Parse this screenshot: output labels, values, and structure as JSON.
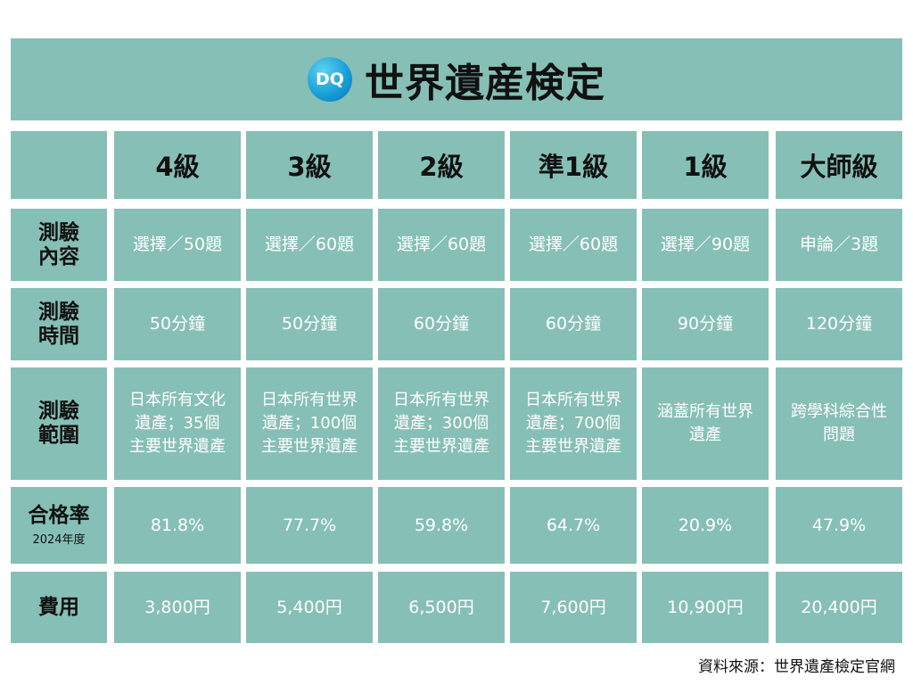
{
  "header": {
    "logo": "DQ",
    "title": "世界遺産検定"
  },
  "levels": [
    "4級",
    "3級",
    "2級",
    "準1級",
    "1級",
    "大師級"
  ],
  "rows": [
    {
      "label": [
        "測驗",
        "內容"
      ],
      "note": "",
      "values": [
        [
          "選擇／50題"
        ],
        [
          "選擇／60題"
        ],
        [
          "選擇／60題"
        ],
        [
          "選擇／60題"
        ],
        [
          "選擇／90題"
        ],
        [
          "申論／3題"
        ]
      ]
    },
    {
      "label": [
        "測驗",
        "時間"
      ],
      "note": "",
      "values": [
        [
          "50分鐘"
        ],
        [
          "50分鐘"
        ],
        [
          "60分鐘"
        ],
        [
          "60分鐘"
        ],
        [
          "90分鐘"
        ],
        [
          "120分鐘"
        ]
      ]
    },
    {
      "label": [
        "測驗",
        "範圍"
      ],
      "note": "",
      "values": [
        [
          "日本所有文化",
          "遺產；35個",
          "主要世界遺產"
        ],
        [
          "日本所有世界",
          "遺產；100個",
          "主要世界遺產"
        ],
        [
          "日本所有世界",
          "遺產；300個",
          "主要世界遺產"
        ],
        [
          "日本所有世界",
          "遺產；700個",
          "主要世界遺產"
        ],
        [
          "涵蓋所有世界",
          "遺產"
        ],
        [
          "跨學科綜合性",
          "問題"
        ]
      ]
    },
    {
      "label": [
        "合格率"
      ],
      "note": "2024年度",
      "values": [
        [
          "81.8%"
        ],
        [
          "77.7%"
        ],
        [
          "59.8%"
        ],
        [
          "64.7%"
        ],
        [
          "20.9%"
        ],
        [
          "47.9%"
        ]
      ]
    },
    {
      "label": [
        "費用"
      ],
      "note": "",
      "values": [
        [
          "3,800円"
        ],
        [
          "5,400円"
        ],
        [
          "6,500円"
        ],
        [
          "7,600円"
        ],
        [
          "10,900円"
        ],
        [
          "20,400円"
        ]
      ]
    }
  ],
  "source": "資料來源：世界遺產檢定官網"
}
